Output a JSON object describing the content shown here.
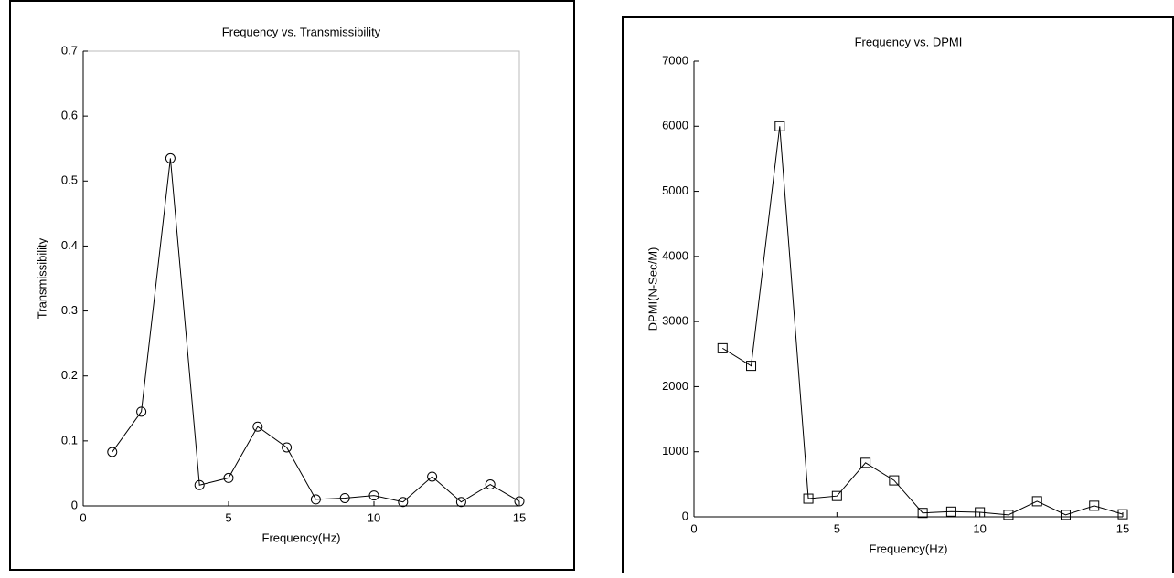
{
  "chart_data": [
    {
      "type": "line",
      "title": "Frequency vs. Transmissibility",
      "x_label": "Frequency(Hz)",
      "y_label": "Transmissibility",
      "x": [
        1,
        2,
        3,
        4,
        5,
        6,
        7,
        8,
        9,
        10,
        11,
        12,
        13,
        14,
        15
      ],
      "values": [
        0.083,
        0.145,
        0.535,
        0.032,
        0.043,
        0.122,
        0.09,
        0.01,
        0.012,
        0.016,
        0.006,
        0.045,
        0.006,
        0.033,
        0.007
      ],
      "color": "#000000",
      "marker": "circle",
      "xlim": [
        0,
        15
      ],
      "xticks": [
        0,
        5,
        10,
        15
      ],
      "ylim": [
        0,
        0.7
      ],
      "yticks": [
        0,
        0.1,
        0.2,
        0.3,
        0.4,
        0.5,
        0.6,
        0.7
      ],
      "box": true
    },
    {
      "type": "line",
      "title": "Frequency vs. DPMI",
      "x_label": "Frequency(Hz)",
      "y_label": "DPMI(N-Sec/M)",
      "x": [
        1,
        2,
        3,
        4,
        5,
        6,
        7,
        8,
        9,
        10,
        11,
        12,
        13,
        14,
        15
      ],
      "values": [
        2590,
        2320,
        6000,
        280,
        320,
        830,
        560,
        60,
        80,
        70,
        30,
        240,
        30,
        170,
        40
      ],
      "color": "#000000",
      "marker": "square",
      "xlim": [
        0,
        15
      ],
      "xticks": [
        0,
        5,
        10,
        15
      ],
      "ylim": [
        0,
        7000
      ],
      "yticks": [
        0,
        1000,
        2000,
        3000,
        4000,
        5000,
        6000,
        7000
      ],
      "box": false
    }
  ]
}
